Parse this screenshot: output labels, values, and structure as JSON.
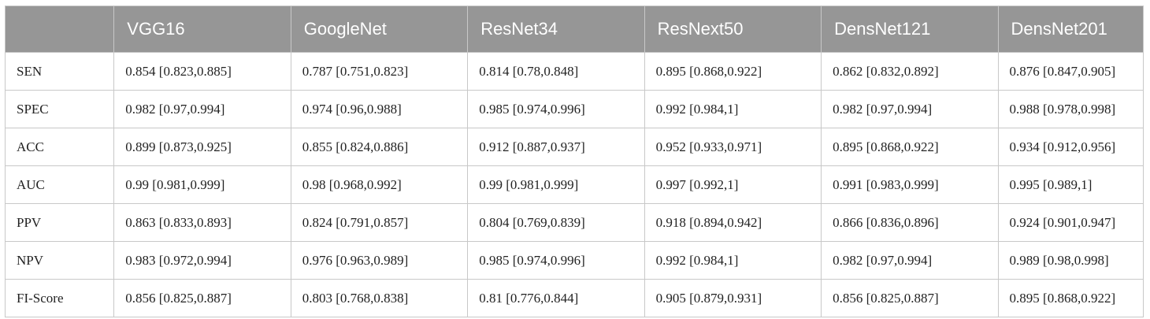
{
  "table": {
    "columns": [
      "",
      "VGG16",
      "GoogleNet",
      "ResNet34",
      "ResNext50",
      "DensNet121",
      "DensNet201"
    ],
    "rows": [
      {
        "metric": "SEN",
        "cells": [
          "0.854 [0.823,0.885]",
          "0.787 [0.751,0.823]",
          "0.814 [0.78,0.848]",
          "0.895 [0.868,0.922]",
          "0.862 [0.832,0.892]",
          "0.876 [0.847,0.905]"
        ]
      },
      {
        "metric": "SPEC",
        "cells": [
          "0.982 [0.97,0.994]",
          "0.974 [0.96,0.988]",
          "0.985 [0.974,0.996]",
          "0.992 [0.984,1]",
          "0.982 [0.97,0.994]",
          "0.988 [0.978,0.998]"
        ]
      },
      {
        "metric": "ACC",
        "cells": [
          "0.899 [0.873,0.925]",
          "0.855 [0.824,0.886]",
          "0.912 [0.887,0.937]",
          "0.952 [0.933,0.971]",
          "0.895 [0.868,0.922]",
          "0.934 [0.912,0.956]"
        ]
      },
      {
        "metric": "AUC",
        "cells": [
          "0.99 [0.981,0.999]",
          "0.98 [0.968,0.992]",
          "0.99 [0.981,0.999]",
          "0.997 [0.992,1]",
          "0.991 [0.983,0.999]",
          "0.995 [0.989,1]"
        ]
      },
      {
        "metric": "PPV",
        "cells": [
          "0.863 [0.833,0.893]",
          "0.824 [0.791,0.857]",
          "0.804 [0.769,0.839]",
          "0.918 [0.894,0.942]",
          "0.866 [0.836,0.896]",
          "0.924 [0.901,0.947]"
        ]
      },
      {
        "metric": "NPV",
        "cells": [
          "0.983 [0.972,0.994]",
          "0.976 [0.963,0.989]",
          "0.985 [0.974,0.996]",
          "0.992 [0.984,1]",
          "0.982 [0.97,0.994]",
          "0.989 [0.98,0.998]"
        ]
      },
      {
        "metric": "FI-Score",
        "cells": [
          "0.856 [0.825,0.887]",
          "0.803 [0.768,0.838]",
          "0.81 [0.776,0.844]",
          "0.905 [0.879,0.931]",
          "0.856 [0.825,0.887]",
          "0.895 [0.868,0.922]"
        ]
      }
    ]
  },
  "colors": {
    "header_background": "#969696",
    "header_text": "#ffffff",
    "grid_line": "#c8c8c8"
  }
}
